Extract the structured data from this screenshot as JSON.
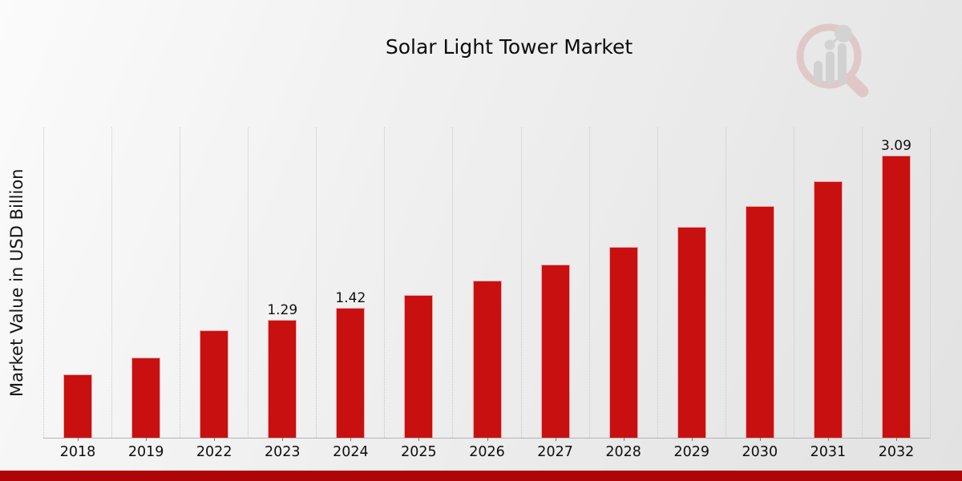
{
  "page": {
    "title": "Solar Light Tower Market"
  },
  "chart": {
    "y_axis_label": "Market Value in USD Billion"
  },
  "logo": {
    "icon": "magnifier-bar-chart-watermark-icon"
  },
  "colors": {
    "bar": "#c81010",
    "footer_strip": "#ae0606",
    "grid": "#c6c6c6",
    "axis_line": "#b3b3b3",
    "text": "#0d0d0d",
    "watermark_ring": "#dcb3b3",
    "watermark_gray": "#c2c2c2"
  },
  "chart_data": {
    "type": "bar",
    "title": "Solar Light Tower Market",
    "xlabel": "",
    "ylabel": "Market Value in USD Billion",
    "categories": [
      "2018",
      "2019",
      "2022",
      "2023",
      "2024",
      "2025",
      "2026",
      "2027",
      "2028",
      "2029",
      "2030",
      "2031",
      "2032"
    ],
    "values": [
      0.69,
      0.88,
      1.18,
      1.29,
      1.42,
      1.56,
      1.72,
      1.9,
      2.09,
      2.31,
      2.54,
      2.81,
      3.09
    ],
    "bar_labels": [
      "",
      "",
      "",
      "1.29",
      "1.42",
      "",
      "",
      "",
      "",
      "",
      "",
      "",
      "3.09"
    ],
    "ylim": [
      0,
      3.4
    ],
    "grid": "vertical-dotted-category-boundaries",
    "legend": "none",
    "bar_color": "#c81010"
  }
}
